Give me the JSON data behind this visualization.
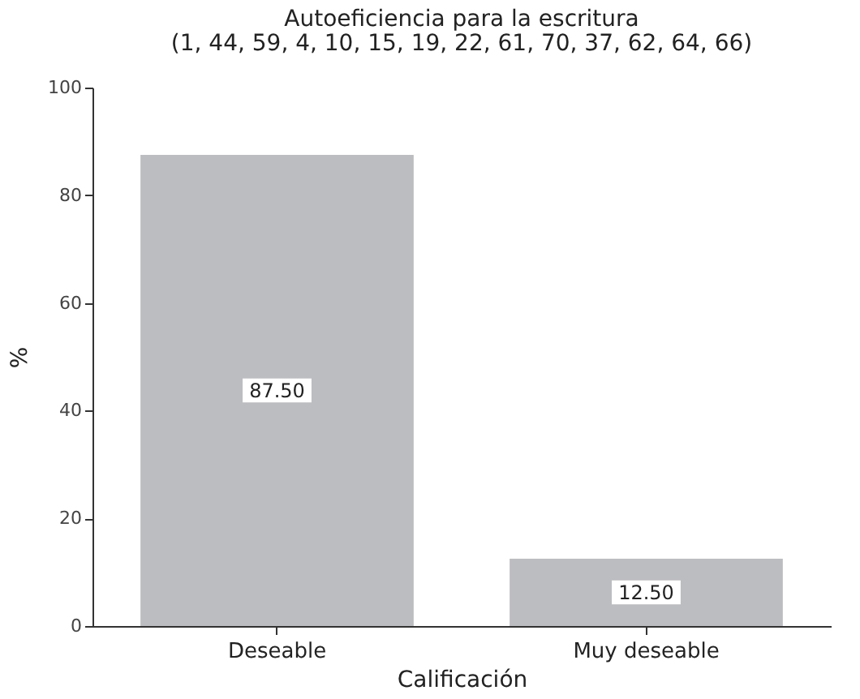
{
  "chart_data": {
    "type": "bar",
    "title": "Autoeficiencia para la escritura",
    "subtitle": "(1, 44, 59, 4, 10, 15, 19, 22, 61, 70, 37, 62, 64, 66)",
    "xlabel": "Calificación",
    "ylabel": "%",
    "categories": [
      "Deseable",
      "Muy deseable"
    ],
    "values": [
      87.5,
      12.5
    ],
    "value_labels": [
      "87.50",
      "12.50"
    ],
    "color": "#bcbdc0",
    "ylim": [
      0,
      100
    ],
    "yticks": [
      0,
      20,
      40,
      60,
      80,
      100
    ],
    "grid": false
  }
}
